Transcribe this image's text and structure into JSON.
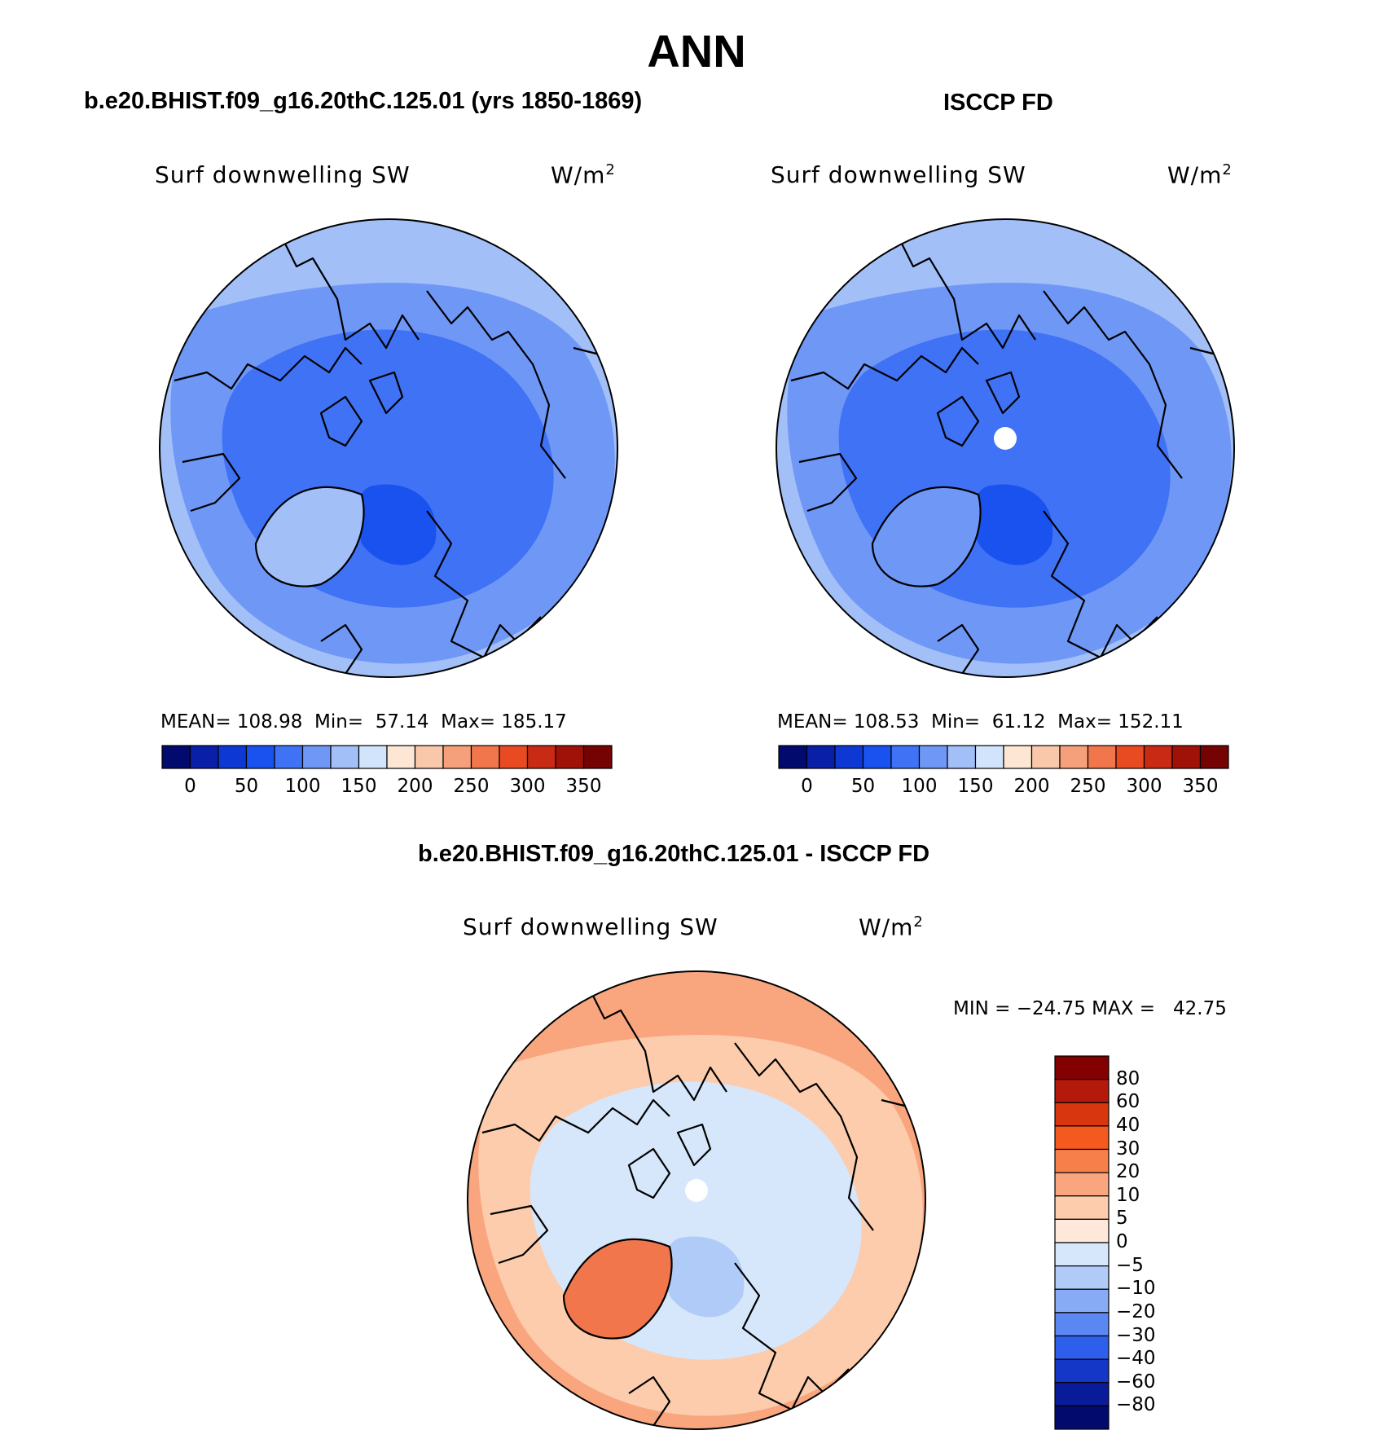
{
  "chart_data": {
    "type": "heatmap",
    "title": "ANN",
    "units": "W/m²",
    "panels": [
      {
        "id": "model",
        "title": "b.e20.BHIST.f09_g16.20thC.125.01 (yrs 1850-1869)",
        "variable_label": "Surf downwelling SW",
        "units_label": "W/m",
        "units_sup": "2",
        "stats": {
          "mean": "108.98",
          "min": "57.14",
          "max": "185.17"
        },
        "stats_text": "MEAN= 108.98  Min=  57.14  Max= 185.17",
        "colorbar_ticks": [
          "0",
          "50",
          "100",
          "150",
          "200",
          "250",
          "300",
          "350"
        ],
        "colorbar_colors": [
          "#020a6e",
          "#0a1fa8",
          "#0d38d4",
          "#1a52f0",
          "#3f72f4",
          "#6f97f6",
          "#a2bff8",
          "#d2e4fb",
          "#fde6d4",
          "#f9c7aa",
          "#f5a07a",
          "#f2764b",
          "#e84a22",
          "#c92a13",
          "#a01208",
          "#750303"
        ]
      },
      {
        "id": "obs",
        "title": "ISCCP FD",
        "variable_label": "Surf downwelling SW",
        "units_label": "W/m",
        "units_sup": "2",
        "stats": {
          "mean": "108.53",
          "min": "61.12",
          "max": "152.11"
        },
        "stats_text": "MEAN= 108.53  Min=  61.12  Max= 152.11",
        "colorbar_ticks": [
          "0",
          "50",
          "100",
          "150",
          "200",
          "250",
          "300",
          "350"
        ],
        "colorbar_colors": [
          "#020a6e",
          "#0a1fa8",
          "#0d38d4",
          "#1a52f0",
          "#3f72f4",
          "#6f97f6",
          "#a2bff8",
          "#d2e4fb",
          "#fde6d4",
          "#f9c7aa",
          "#f5a07a",
          "#f2764b",
          "#e84a22",
          "#c92a13",
          "#a01208",
          "#750303"
        ]
      },
      {
        "id": "diff",
        "title": "b.e20.BHIST.f09_g16.20thC.125.01 - ISCCP FD",
        "variable_label": "Surf downwelling SW",
        "units_label": "W/m",
        "units_sup": "2",
        "stats": {
          "min": "-24.75",
          "max": "42.75"
        },
        "stats_text": "MIN = −24.75 MAX =   42.75",
        "colorbar_ticks": [
          "80",
          "60",
          "40",
          "30",
          "20",
          "10",
          "5",
          "0",
          "−5",
          "−10",
          "−20",
          "−30",
          "−40",
          "−60",
          "−80"
        ],
        "colorbar_colors": [
          "#820000",
          "#b31a0a",
          "#d8360f",
          "#f45a1e",
          "#f77f4a",
          "#f9a67e",
          "#fcccad",
          "#fde8da",
          "#d6e6fb",
          "#b0cbf8",
          "#87acf5",
          "#5a87f2",
          "#2e5fec",
          "#1537c7",
          "#0a1b99",
          "#020a6e"
        ]
      }
    ]
  }
}
